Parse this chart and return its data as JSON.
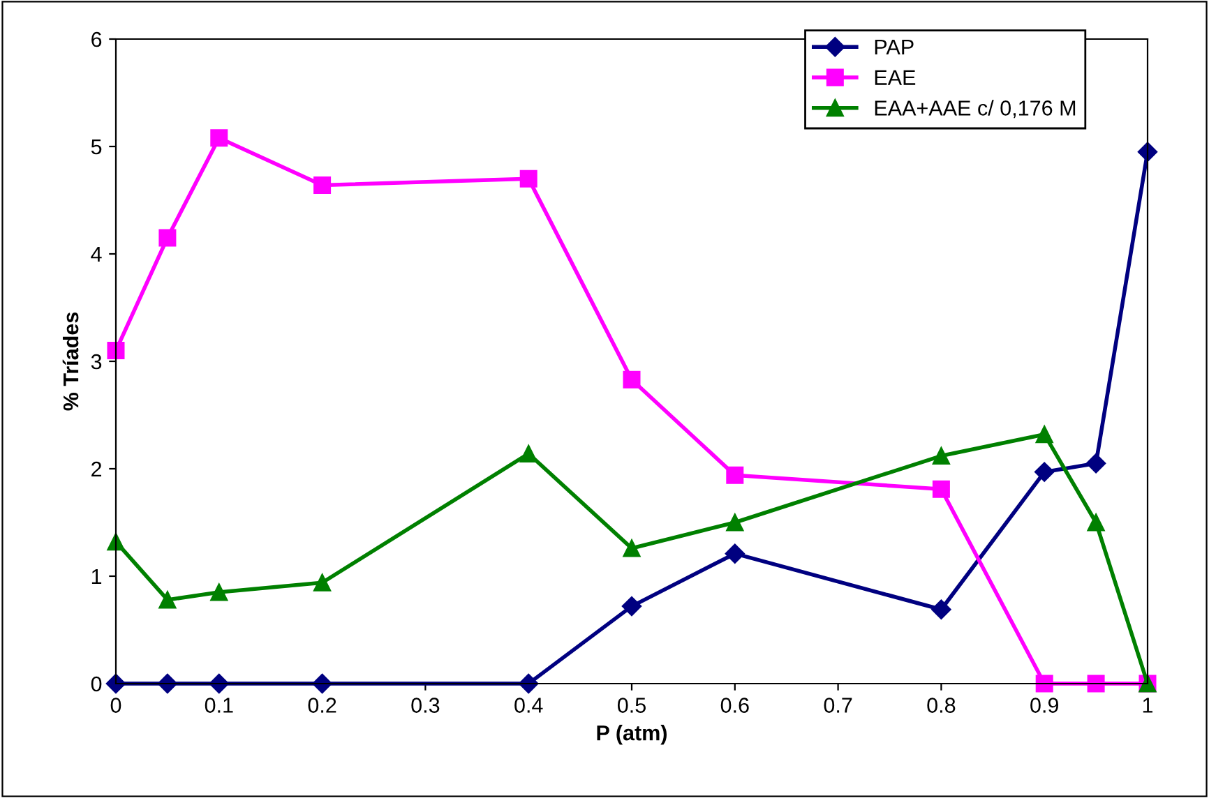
{
  "chart_data": {
    "type": "line",
    "xlabel": "P (atm)",
    "ylabel": "% Tríades",
    "x": [
      0,
      0.05,
      0.1,
      0.2,
      0.4,
      0.5,
      0.6,
      0.8,
      0.9,
      0.95,
      1
    ],
    "series": [
      {
        "name": "PAP",
        "color": "#000080",
        "marker": "diamond",
        "values": [
          0,
          0,
          0,
          0,
          0,
          0.72,
          1.21,
          0.69,
          1.97,
          2.05,
          4.95
        ]
      },
      {
        "name": "EAE",
        "color": "#ff00ff",
        "marker": "square",
        "values": [
          3.1,
          4.15,
          5.08,
          4.64,
          4.7,
          2.83,
          1.94,
          1.81,
          0,
          0,
          0
        ]
      },
      {
        "name": "EAA+AAE c/ 0,176 M",
        "color": "#008000",
        "marker": "triangle",
        "values": [
          1.32,
          0.78,
          0.85,
          0.94,
          2.14,
          1.26,
          1.5,
          2.12,
          2.32,
          1.5,
          0
        ]
      }
    ],
    "xlim": [
      0,
      1
    ],
    "xticks": [
      0,
      0.1,
      0.2,
      0.3,
      0.4,
      0.5,
      0.6,
      0.7,
      0.8,
      0.9,
      1
    ],
    "ylim": [
      0,
      6
    ],
    "yticks": [
      0,
      1,
      2,
      3,
      4,
      5,
      6
    ],
    "grid": false,
    "legend": "top right",
    "line_style": "solid"
  }
}
